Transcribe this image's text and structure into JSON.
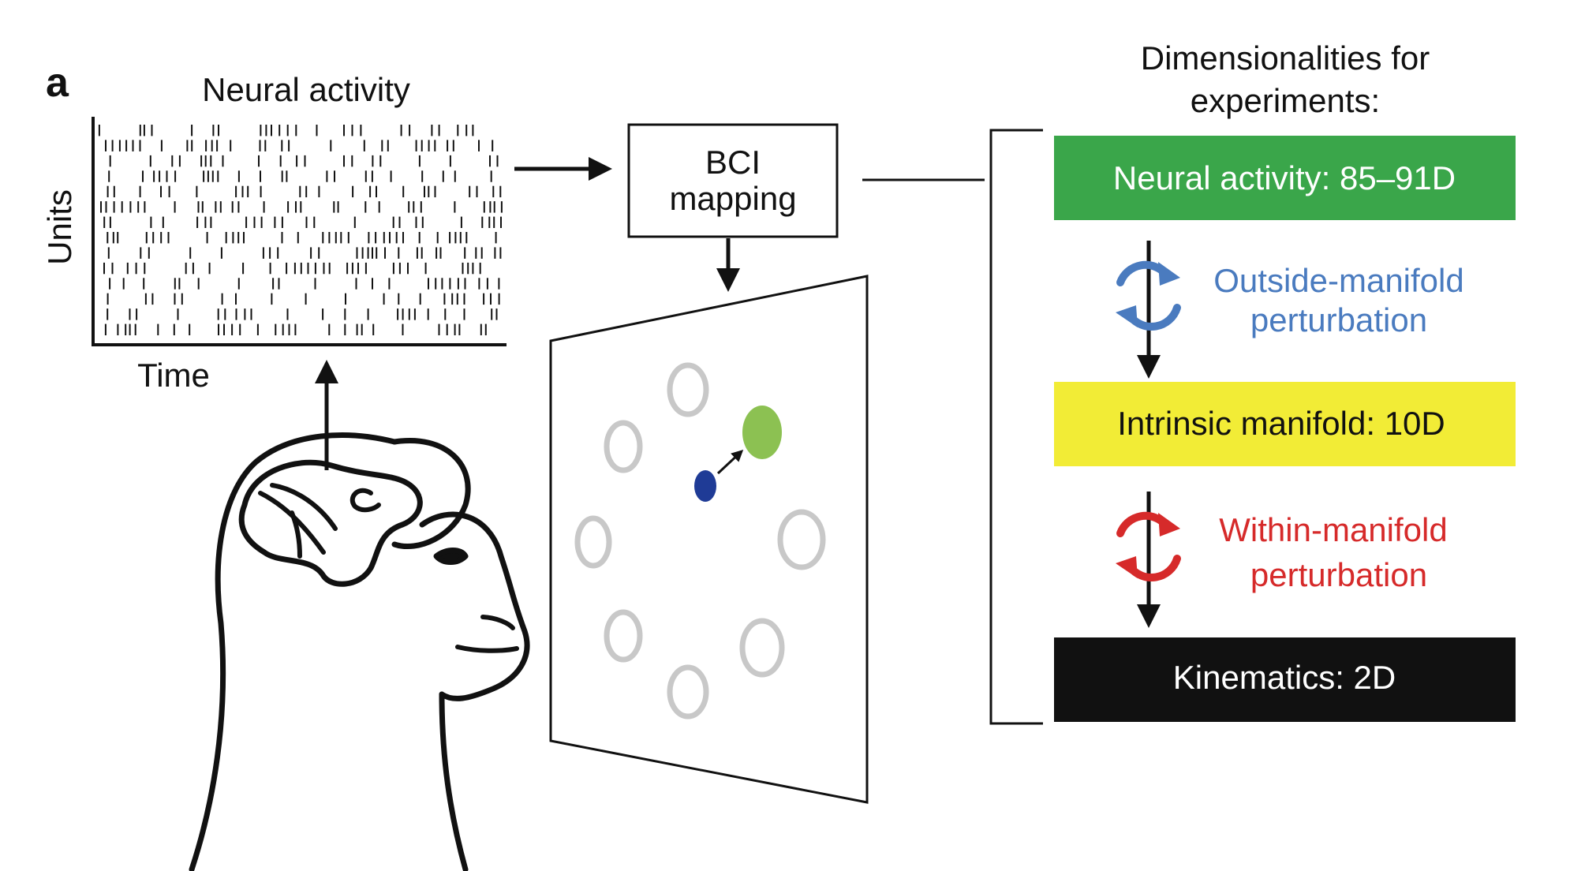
{
  "panel_label": "a",
  "raster": {
    "title": "Neural activity",
    "ylabel": "Units",
    "xlabel": "Time",
    "rows": 14
  },
  "bci_box": {
    "line1": "BCI",
    "line2": "mapping"
  },
  "dimensions": {
    "title_line1": "Dimensionalities for",
    "title_line2": "experiments:",
    "levels": [
      {
        "label": "Neural activity: 85–91D",
        "bg": "#3aa64a",
        "fg": "#ffffff"
      },
      {
        "label": "Intrinsic manifold: 10D",
        "bg": "#f2ec36",
        "fg": "#111111"
      },
      {
        "label": "Kinematics: 2D",
        "bg": "#111111",
        "fg": "#ffffff"
      }
    ],
    "perturbations": [
      {
        "line1": "Outside-manifold",
        "line2": "perturbation",
        "color": "#4a7bbf"
      },
      {
        "line1": "Within-manifold",
        "line2": "perturbation",
        "color": "#d62a2a"
      }
    ]
  },
  "colors": {
    "cursor": "#1f3b96",
    "target": "#8cc152",
    "ring": "#c8c8c8",
    "ink": "#111111"
  }
}
